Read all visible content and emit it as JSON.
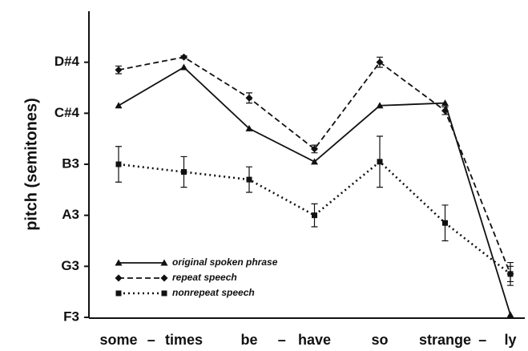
{
  "chart_data": {
    "type": "line",
    "ylabel": "pitch (semitones)",
    "categories": [
      "some",
      "times",
      "be",
      "have",
      "so",
      "strange",
      "ly"
    ],
    "hyphen": "–",
    "ylim": [
      53,
      65
    ],
    "yticks": [
      {
        "value": 53,
        "label": "F3"
      },
      {
        "value": 55,
        "label": "G3"
      },
      {
        "value": 57,
        "label": "A3"
      },
      {
        "value": 59,
        "label": "B3"
      },
      {
        "value": 61,
        "label": "C#4"
      },
      {
        "value": 63,
        "label": "D#4"
      }
    ],
    "legend": "lower left",
    "series": [
      {
        "name": "original spoken phrase",
        "color": "#111111",
        "dash": "solid",
        "marker": "triangle",
        "values": [
          61.3,
          62.8,
          60.4,
          59.1,
          61.3,
          61.4,
          53.1
        ]
      },
      {
        "name": "repeat speech",
        "color": "#111111",
        "dash": "dashed",
        "marker": "diamond",
        "values": [
          62.7,
          63.2,
          61.6,
          59.6,
          63.0,
          61.1,
          54.7
        ],
        "errors": [
          0.15,
          0.05,
          0.2,
          0.15,
          0.2,
          0.15,
          0.3
        ]
      },
      {
        "name": "nonrepeat speech",
        "color": "#111111",
        "dash": "dotted",
        "marker": "square",
        "values": [
          59.0,
          58.7,
          58.4,
          57.0,
          59.1,
          56.7,
          54.7
        ],
        "errors": [
          0.7,
          0.6,
          0.5,
          0.45,
          1.0,
          0.7,
          0.45
        ]
      }
    ]
  }
}
